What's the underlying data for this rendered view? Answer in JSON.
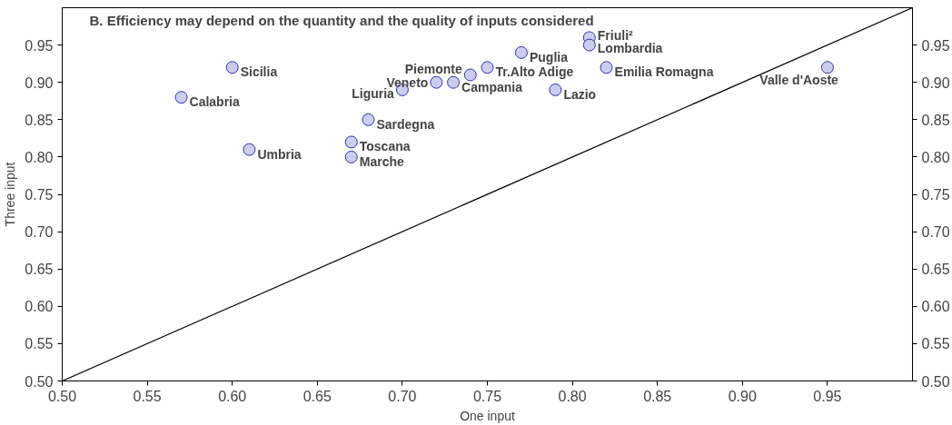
{
  "chart_data": {
    "type": "scatter",
    "title": "B. Efficiency may depend on the quantity and the quality of inputs considered",
    "xlabel": "One input",
    "ylabel": "Three input",
    "xlim": [
      0.5,
      1.0
    ],
    "ylim": [
      0.5,
      1.0
    ],
    "y2lim": [
      0.5,
      1.0
    ],
    "xticks": [
      {
        "value": 0.5,
        "label": "0.50"
      },
      {
        "value": 0.55,
        "label": "0.55"
      },
      {
        "value": 0.6,
        "label": "0.60"
      },
      {
        "value": 0.65,
        "label": "0.65"
      },
      {
        "value": 0.7,
        "label": "0.70"
      },
      {
        "value": 0.75,
        "label": "0.75"
      },
      {
        "value": 0.8,
        "label": "0.80"
      },
      {
        "value": 0.85,
        "label": "0.85"
      },
      {
        "value": 0.9,
        "label": "0.90"
      },
      {
        "value": 0.95,
        "label": "0.95"
      }
    ],
    "yticks": [
      {
        "value": 0.5,
        "label": "0.50"
      },
      {
        "value": 0.55,
        "label": "0.55"
      },
      {
        "value": 0.6,
        "label": "0.60"
      },
      {
        "value": 0.65,
        "label": "0.65"
      },
      {
        "value": 0.7,
        "label": "0.70"
      },
      {
        "value": 0.75,
        "label": "0.75"
      },
      {
        "value": 0.8,
        "label": "0.80"
      },
      {
        "value": 0.85,
        "label": "0.85"
      },
      {
        "value": 0.9,
        "label": "0.90"
      },
      {
        "value": 0.95,
        "label": "0.95"
      }
    ],
    "y2ticks": [
      {
        "value": 0.5,
        "label": "0.50"
      },
      {
        "value": 0.55,
        "label": "0.55"
      },
      {
        "value": 0.6,
        "label": "0.60"
      },
      {
        "value": 0.65,
        "label": "0.65"
      },
      {
        "value": 0.7,
        "label": "0.70"
      },
      {
        "value": 0.75,
        "label": "0.75"
      },
      {
        "value": 0.8,
        "label": "0.80"
      },
      {
        "value": 0.85,
        "label": "0.85"
      },
      {
        "value": 0.9,
        "label": "0.90"
      },
      {
        "value": 0.95,
        "label": "0.95"
      }
    ],
    "grid": false,
    "series": [
      {
        "marker": "circle",
        "color": "#ccccee",
        "x": [
          0.57,
          0.6,
          0.61,
          0.68,
          0.67,
          0.67,
          0.7,
          0.72,
          0.74,
          0.73,
          0.75,
          0.77,
          0.79,
          0.81,
          0.81,
          0.82,
          0.95
        ],
        "values": [
          0.88,
          0.92,
          0.81,
          0.85,
          0.82,
          0.8,
          0.89,
          0.9,
          0.91,
          0.9,
          0.92,
          0.94,
          0.89,
          0.96,
          0.95,
          0.92,
          0.92
        ]
      },
      {
        "type": "line",
        "marker": "none",
        "color": "#000000",
        "x": [
          0.5,
          1.0
        ],
        "values": [
          0.5,
          1.0
        ]
      }
    ],
    "annotations": [
      {
        "text": "Calabria",
        "x": 0.57,
        "y": 0.88
      },
      {
        "text": "Sicilia",
        "x": 0.6,
        "y": 0.92
      },
      {
        "text": "Umbria",
        "x": 0.61,
        "y": 0.81
      },
      {
        "text": "Sardegna",
        "x": 0.68,
        "y": 0.85
      },
      {
        "text": "Toscana",
        "x": 0.67,
        "y": 0.82
      },
      {
        "text": "Marche",
        "x": 0.67,
        "y": 0.8
      },
      {
        "text": "Liguria",
        "x": 0.7,
        "y": 0.89
      },
      {
        "text": "Veneto",
        "x": 0.72,
        "y": 0.9
      },
      {
        "text": "Piemonte",
        "x": 0.74,
        "y": 0.91
      },
      {
        "text": "Campania",
        "x": 0.73,
        "y": 0.9
      },
      {
        "text": "Tr.Alto Adige",
        "x": 0.75,
        "y": 0.92
      },
      {
        "text": "Puglia",
        "x": 0.77,
        "y": 0.94
      },
      {
        "text": "Lazio",
        "x": 0.79,
        "y": 0.89
      },
      {
        "text": "Friuli²",
        "x": 0.81,
        "y": 0.96
      },
      {
        "text": "Lombardia",
        "x": 0.81,
        "y": 0.95
      },
      {
        "text": "Emilia Romagna",
        "x": 0.82,
        "y": 0.92
      },
      {
        "text": "Valle d'Aoste",
        "x": 0.95,
        "y": 0.92
      }
    ]
  }
}
